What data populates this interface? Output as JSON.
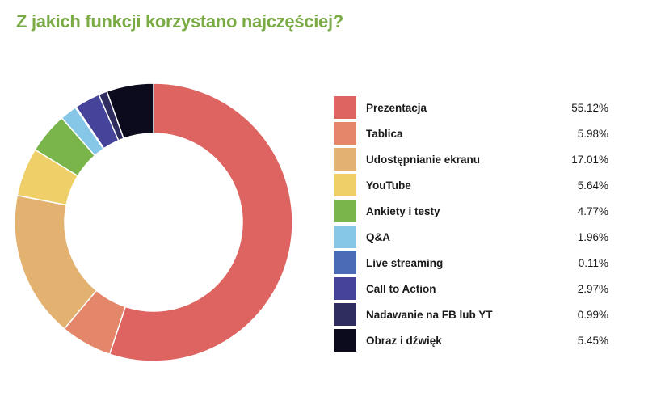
{
  "title": "Z jakich funkcji korzystano najczęściej?",
  "chart_data": {
    "type": "pie",
    "variant": "donut",
    "title": "Z jakich funkcji korzystano najczęściej?",
    "legend_position": "right",
    "slices": [
      {
        "label": "Prezentacja",
        "value": 55.12,
        "display": "55.12%",
        "color": "#dd6461"
      },
      {
        "label": "Tablica",
        "value": 5.98,
        "display": "5.98%",
        "color": "#e4866a"
      },
      {
        "label": "Udostępnianie ekranu",
        "value": 17.01,
        "display": "17.01%",
        "color": "#e3b170"
      },
      {
        "label": "YouTube",
        "value": 5.64,
        "display": "5.64%",
        "color": "#efcf67"
      },
      {
        "label": "Ankiety i testy",
        "value": 4.77,
        "display": "4.77%",
        "color": "#7ab54b"
      },
      {
        "label": "Q&A",
        "value": 1.96,
        "display": "1.96%",
        "color": "#86c6e6"
      },
      {
        "label": "Live streaming",
        "value": 0.11,
        "display": "0.11%",
        "color": "#4a6cb6"
      },
      {
        "label": "Call to Action",
        "value": 2.97,
        "display": "2.97%",
        "color": "#46449a"
      },
      {
        "label": "Nadawanie na FB lub YT",
        "value": 0.99,
        "display": "0.99%",
        "color": "#2f2c60"
      },
      {
        "label": "Obraz i dźwięk",
        "value": 5.45,
        "display": "5.45%",
        "color": "#0c0b1e"
      }
    ]
  }
}
